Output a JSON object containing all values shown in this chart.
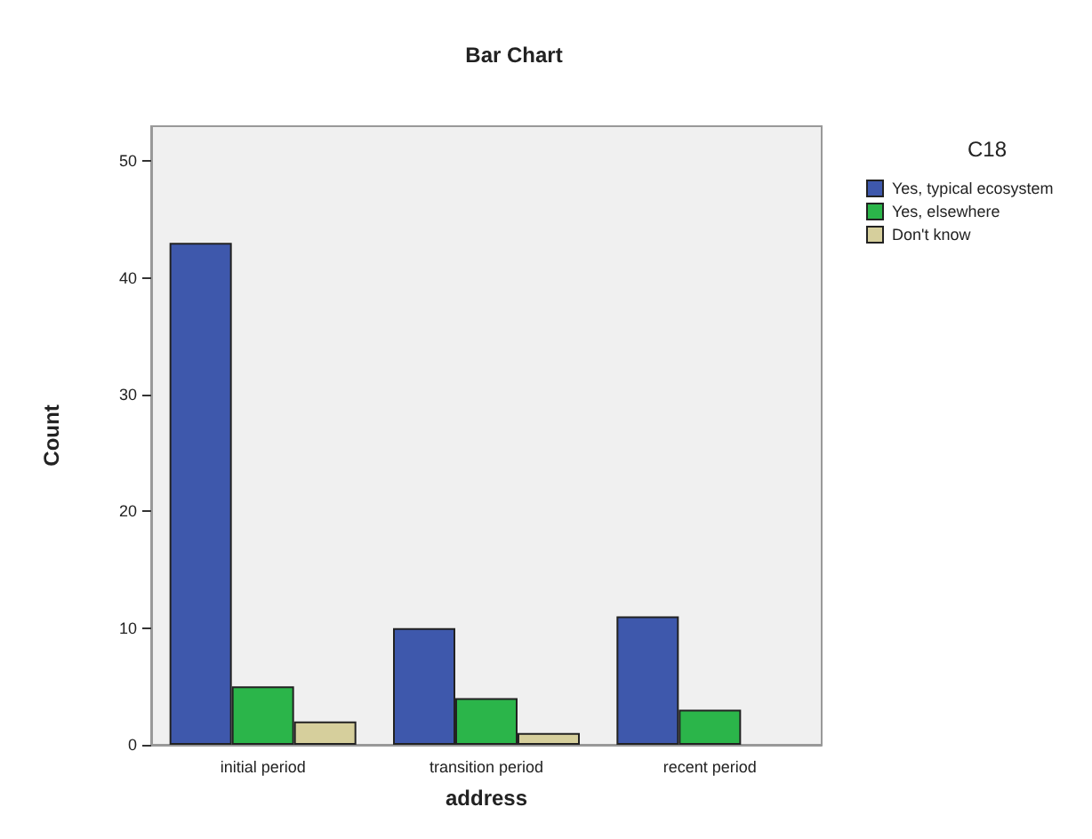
{
  "chart_data": {
    "type": "bar",
    "title": "Bar Chart",
    "xlabel": "address",
    "ylabel": "Count",
    "legend_title": "C18",
    "categories": [
      "initial period",
      "transition period",
      "recent period"
    ],
    "series": [
      {
        "name": "Yes, typical ecosystem",
        "color": "#3e58ac",
        "values": [
          43,
          10,
          11
        ]
      },
      {
        "name": "Yes, elsewhere",
        "color": "#2bb54a",
        "values": [
          5,
          4,
          3
        ]
      },
      {
        "name": "Don't know",
        "color": "#d6cf9c",
        "values": [
          2,
          1,
          null
        ]
      }
    ],
    "ylim": [
      0,
      53
    ],
    "yticks": [
      0,
      10,
      20,
      30,
      40,
      50
    ],
    "grid": false,
    "legend": "right"
  }
}
